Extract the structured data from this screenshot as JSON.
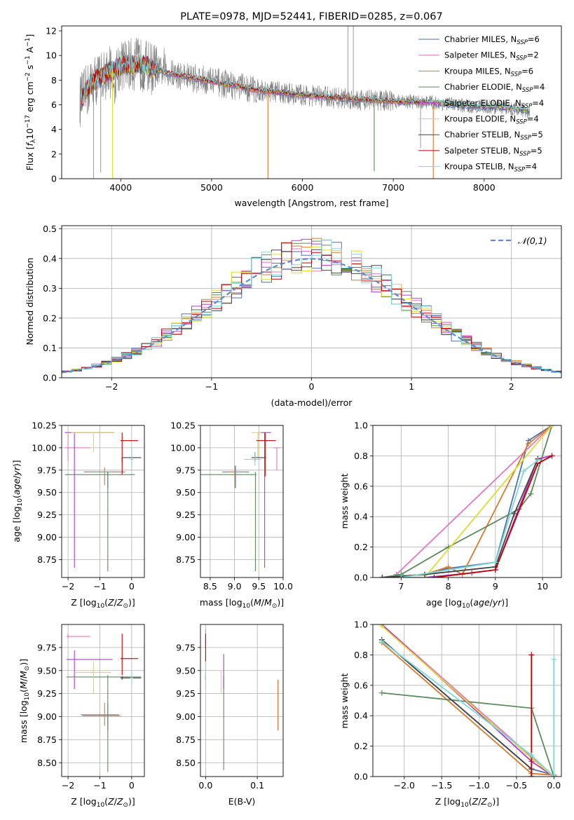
{
  "chart_data": [
    {
      "type": "line",
      "title": "PLATE=0978, MJD=52441, FIBERID=0285, z=0.067",
      "xlabel": "wavelength [Angstrom, rest frame]",
      "ylabel": "Flux [f_λ 10^-17 erg cm^-2 s^-1 A^-1]",
      "xlim": [
        3350,
        8850
      ],
      "ylim": [
        0,
        12.4
      ],
      "xticks": [
        "4000",
        "5000",
        "6000",
        "7000",
        "8000"
      ],
      "yticks": [
        "0",
        "2",
        "4",
        "6",
        "8",
        "10",
        "12"
      ],
      "grid": false,
      "legend_position": "top-right",
      "legend": [
        {
          "label": "Chabrier MILES, N",
          "sub": "SSP",
          "suffix": "=6",
          "color": "#4c72b0"
        },
        {
          "label": "Salpeter MILES, N",
          "sub": "SSP",
          "suffix": "=2",
          "color": "#e377c2"
        },
        {
          "label": "Kroupa MILES, N",
          "sub": "SSP",
          "suffix": "=6",
          "color": "#d97b2d"
        },
        {
          "label": "Chabrier ELODIE, N",
          "sub": "SSP",
          "suffix": "=4",
          "color": "#5b8c5a"
        },
        {
          "label": "Salpeter ELODIE, N",
          "sub": "SSP",
          "suffix": "=4",
          "color": "#b03ccc"
        },
        {
          "label": "Kroupa ELODIE, N",
          "sub": "SSP",
          "suffix": "=4",
          "color": "#dddd33"
        },
        {
          "label": "Chabrier STELIB, N",
          "sub": "SSP",
          "suffix": "=5",
          "color": "#444444"
        },
        {
          "label": "Salpeter STELIB, N",
          "sub": "SSP",
          "suffix": "=5",
          "color": "#c00000"
        },
        {
          "label": "Kroupa STELIB, N",
          "sub": "SSP",
          "suffix": "=4",
          "color": "#7fd8d8"
        }
      ],
      "data_color": "#808080",
      "continuum": {
        "x": [
          3550,
          3700,
          4000,
          4200,
          4500,
          5000,
          5500,
          6000,
          6500,
          7000,
          7400,
          7800,
          8200,
          8500
        ],
        "y": [
          6.3,
          7.9,
          9.2,
          9.3,
          8.6,
          7.9,
          7.2,
          6.8,
          6.5,
          6.3,
          6.2,
          5.9,
          5.8,
          5.5
        ]
      }
    },
    {
      "type": "bar",
      "xlabel": "(data-model)/error",
      "ylabel": "Normed distribution",
      "xlim": [
        -2.5,
        2.5
      ],
      "ylim": [
        0,
        0.51
      ],
      "xticks": [
        "−2",
        "−1",
        "0",
        "1",
        "2"
      ],
      "yticks": [
        "0.0",
        "0.1",
        "0.2",
        "0.3",
        "0.4",
        "0.5"
      ],
      "grid": true,
      "legend": [
        {
          "label": "𝒩(0,1)",
          "color": "#5b8bd6"
        }
      ],
      "bin_width": 0.1
    },
    {
      "type": "scatter",
      "xlabel": "Z [log₁₀(Z/Z⊙)]",
      "ylabel": "age  [log₁₀(age/yr)]",
      "xlim": [
        -2.2,
        0.4
      ],
      "ylim": [
        8.55,
        10.25
      ],
      "xticks": [
        "−2",
        "−1",
        "0"
      ],
      "yticks": [
        "8.75",
        "9.00",
        "9.25",
        "9.50",
        "9.75",
        "10.00",
        "10.25"
      ],
      "grid": true
    },
    {
      "type": "scatter",
      "xlabel": "mass [log₁₀(M/M⊙)]",
      "xlim": [
        8.3,
        10.0
      ],
      "ylim": [
        8.55,
        10.25
      ],
      "xticks": [
        "8.5",
        "9.0",
        "9.5",
        "10.0"
      ],
      "yticks": [
        "8.75",
        "9.00",
        "9.25",
        "9.50",
        "9.75",
        "10.00",
        "10.25"
      ],
      "grid": true
    },
    {
      "type": "line",
      "xlabel": "age  [log₁₀(age/yr)]",
      "ylabel": "mass weight",
      "xlim": [
        6.4,
        10.4
      ],
      "ylim": [
        0,
        1.0
      ],
      "xticks": [
        "7",
        "8",
        "9",
        "10"
      ],
      "yticks": [
        "0.0",
        "0.2",
        "0.4",
        "0.6",
        "0.8",
        "1.0"
      ],
      "grid": true
    },
    {
      "type": "scatter",
      "xlabel": "Z [log₁₀(Z/Z⊙)]",
      "ylabel": "mass [log₁₀(M/M⊙)]",
      "xlim": [
        -2.2,
        0.4
      ],
      "ylim": [
        8.35,
        10.0
      ],
      "xticks": [
        "−2",
        "−1",
        "0"
      ],
      "yticks": [
        "8.50",
        "8.75",
        "9.00",
        "9.25",
        "9.50",
        "9.75"
      ],
      "grid": true
    },
    {
      "type": "scatter",
      "xlabel": "E(B-V)",
      "xlim": [
        -0.01,
        0.15
      ],
      "ylim": [
        8.35,
        10.0
      ],
      "xticks": [
        "0.0",
        "0.1"
      ],
      "yticks": [
        "8.50",
        "8.75",
        "9.00",
        "9.25",
        "9.50",
        "9.75"
      ],
      "grid": true
    },
    {
      "type": "line",
      "xlabel": "Z [log₁₀(Z/Z⊙)]",
      "ylabel": "mass weight",
      "xlim": [
        -2.42,
        0.1
      ],
      "ylim": [
        0,
        1.0
      ],
      "xticks": [
        "−2.0",
        "−1.5",
        "−1.0",
        "−0.5",
        "0.0"
      ],
      "yticks": [
        "0.0",
        "0.2",
        "0.4",
        "0.6",
        "0.8",
        "1.0"
      ],
      "grid": true
    }
  ]
}
